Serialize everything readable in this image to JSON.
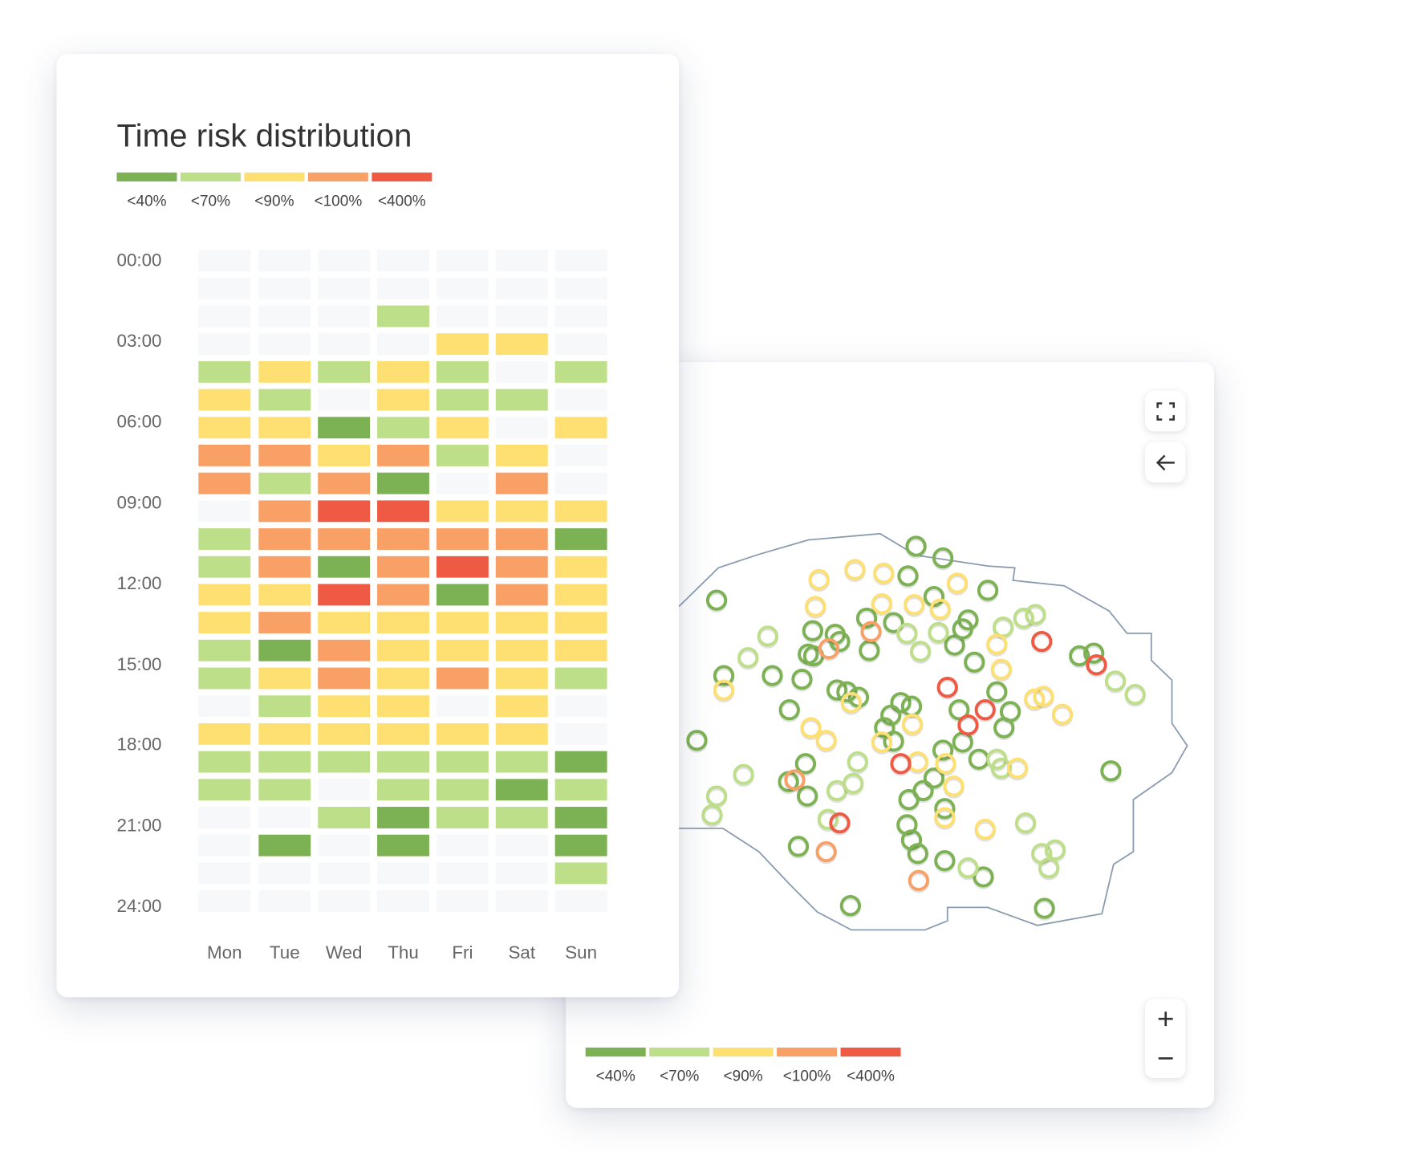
{
  "heatmap": {
    "title": "Time risk distribution",
    "legend": [
      {
        "label": "<40%",
        "color": "#7db254"
      },
      {
        "label": "<70%",
        "color": "#bedf89"
      },
      {
        "label": "<90%",
        "color": "#fde071"
      },
      {
        "label": "<100%",
        "color": "#f9a066"
      },
      {
        "label": "<400%",
        "color": "#ef5a45"
      }
    ],
    "empty_color": "#f7f8fa",
    "time_labels": [
      "00:00",
      "03:00",
      "06:00",
      "09:00",
      "12:00",
      "15:00",
      "18:00",
      "21:00",
      "24:00"
    ],
    "days": [
      "Mon",
      "Tue",
      "Wed",
      "Thu",
      "Fri",
      "Sat",
      "Sun"
    ],
    "level_key": "0 = no data, 1 = <40%, 2 = <70%, 3 = <90%, 4 = <100%, 5 = <400%",
    "hourly_levels": [
      [
        0,
        0,
        0,
        0,
        0,
        0,
        0
      ],
      [
        0,
        0,
        0,
        0,
        0,
        0,
        0
      ],
      [
        0,
        0,
        0,
        2,
        0,
        0,
        0
      ],
      [
        0,
        0,
        0,
        0,
        3,
        3,
        0
      ],
      [
        2,
        3,
        2,
        3,
        2,
        0,
        2
      ],
      [
        3,
        2,
        0,
        3,
        2,
        2,
        0
      ],
      [
        3,
        3,
        1,
        2,
        3,
        0,
        3
      ],
      [
        4,
        4,
        3,
        4,
        2,
        3,
        0
      ],
      [
        4,
        2,
        4,
        1,
        0,
        4,
        0
      ],
      [
        0,
        4,
        5,
        5,
        3,
        3,
        3
      ],
      [
        2,
        4,
        4,
        4,
        4,
        4,
        1
      ],
      [
        2,
        4,
        1,
        4,
        5,
        4,
        3
      ],
      [
        3,
        3,
        5,
        4,
        1,
        4,
        3
      ],
      [
        3,
        4,
        3,
        3,
        3,
        3,
        3
      ],
      [
        2,
        1,
        4,
        3,
        3,
        3,
        3
      ],
      [
        2,
        3,
        4,
        3,
        4,
        3,
        2
      ],
      [
        0,
        2,
        3,
        3,
        0,
        3,
        0
      ],
      [
        3,
        3,
        3,
        3,
        3,
        3,
        0
      ],
      [
        2,
        2,
        2,
        2,
        2,
        2,
        1
      ],
      [
        2,
        2,
        0,
        2,
        2,
        1,
        2
      ],
      [
        0,
        0,
        2,
        1,
        2,
        2,
        1
      ],
      [
        0,
        1,
        0,
        1,
        0,
        0,
        1
      ],
      [
        0,
        0,
        0,
        0,
        0,
        0,
        2
      ],
      [
        0,
        0,
        0,
        0,
        0,
        0,
        0
      ]
    ]
  },
  "map": {
    "controls": {
      "fullscreen_icon": "fullscreen-icon",
      "back_icon": "arrow-left-icon",
      "zoom_in_icon": "plus-icon",
      "zoom_out_icon": "minus-icon"
    },
    "legend": [
      {
        "label": "<40%",
        "color": "#7db254"
      },
      {
        "label": "<70%",
        "color": "#bedf89"
      },
      {
        "label": "<90%",
        "color": "#fde071"
      },
      {
        "label": "<100%",
        "color": "#f9a066"
      },
      {
        "label": "<400%",
        "color": "#ef5a45"
      }
    ],
    "boundary_color": "#8a9bb0"
  }
}
